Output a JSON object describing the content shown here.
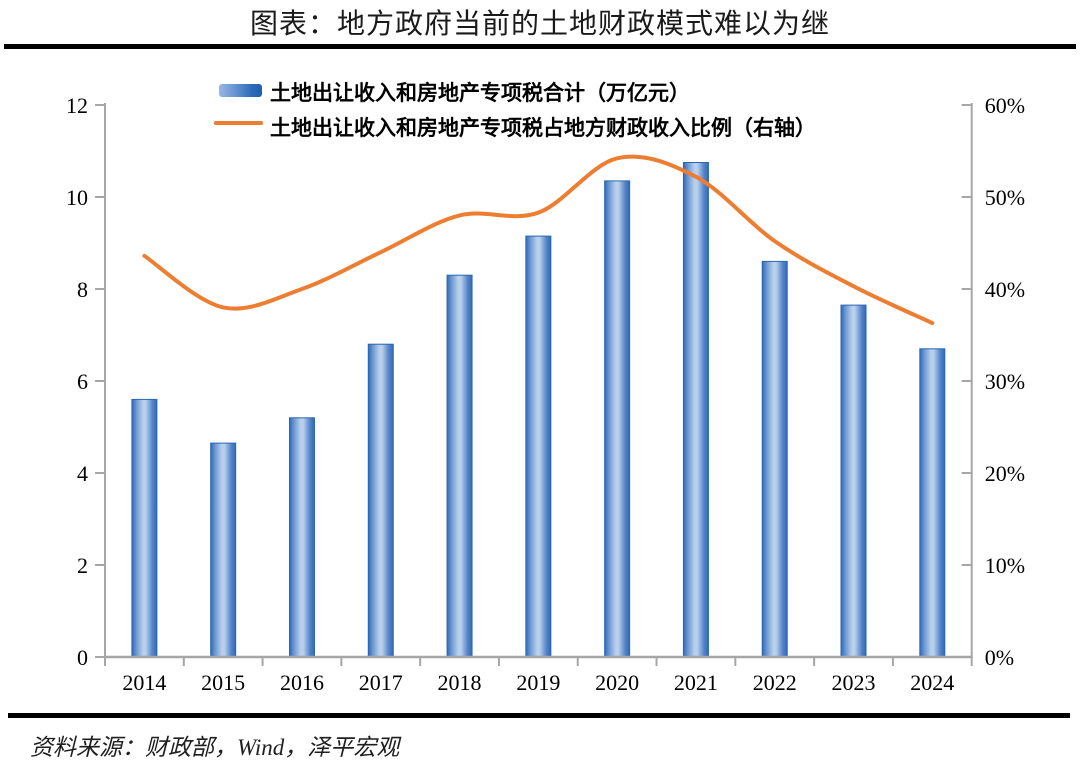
{
  "header": {
    "title": "图表：地方政府当前的土地财政模式难以为继"
  },
  "legend": {
    "bar_label": "土地出让收入和房地产专项税合计（万亿元）",
    "line_label": "土地出让收入和房地产专项税占地方财政收入比例（右轴）"
  },
  "footer": {
    "source": "资料来源：财政部，Wind，泽平宏观"
  },
  "colors": {
    "bar_edge": "#2E6BB8",
    "bar_mid": "#B9D0EC",
    "bar_stroke": "#2B66B0",
    "line": "#ED7D31",
    "axis": "#A6A6A6",
    "tick_text": "#000000"
  },
  "chart_data": {
    "type": "combo",
    "title": "图表：地方政府当前的土地财政模式难以为继",
    "categories": [
      "2014",
      "2015",
      "2016",
      "2017",
      "2018",
      "2019",
      "2020",
      "2021",
      "2022",
      "2023",
      "2024"
    ],
    "series": [
      {
        "name": "土地出让收入和房地产专项税合计（万亿元）",
        "type": "bar",
        "axis": "left",
        "values": [
          5.6,
          4.65,
          5.2,
          6.8,
          8.3,
          9.15,
          10.35,
          10.75,
          8.6,
          7.65,
          6.7
        ]
      },
      {
        "name": "土地出让收入和房地产专项税占地方财政收入比例（右轴）",
        "type": "line",
        "axis": "right",
        "values": [
          43.6,
          38.0,
          40.0,
          44.0,
          48.0,
          48.3,
          54.2,
          52.2,
          45.2,
          40.3,
          36.3
        ]
      }
    ],
    "left_axis": {
      "min": 0,
      "max": 12,
      "step": 2,
      "ticks": [
        "0",
        "2",
        "4",
        "6",
        "8",
        "10",
        "12"
      ]
    },
    "right_axis": {
      "min": 0,
      "max": 60,
      "step": 10,
      "ticks": [
        "0%",
        "10%",
        "20%",
        "30%",
        "40%",
        "50%",
        "60%"
      ]
    },
    "grid": false,
    "legend_position": "top",
    "smooth_line": true
  }
}
